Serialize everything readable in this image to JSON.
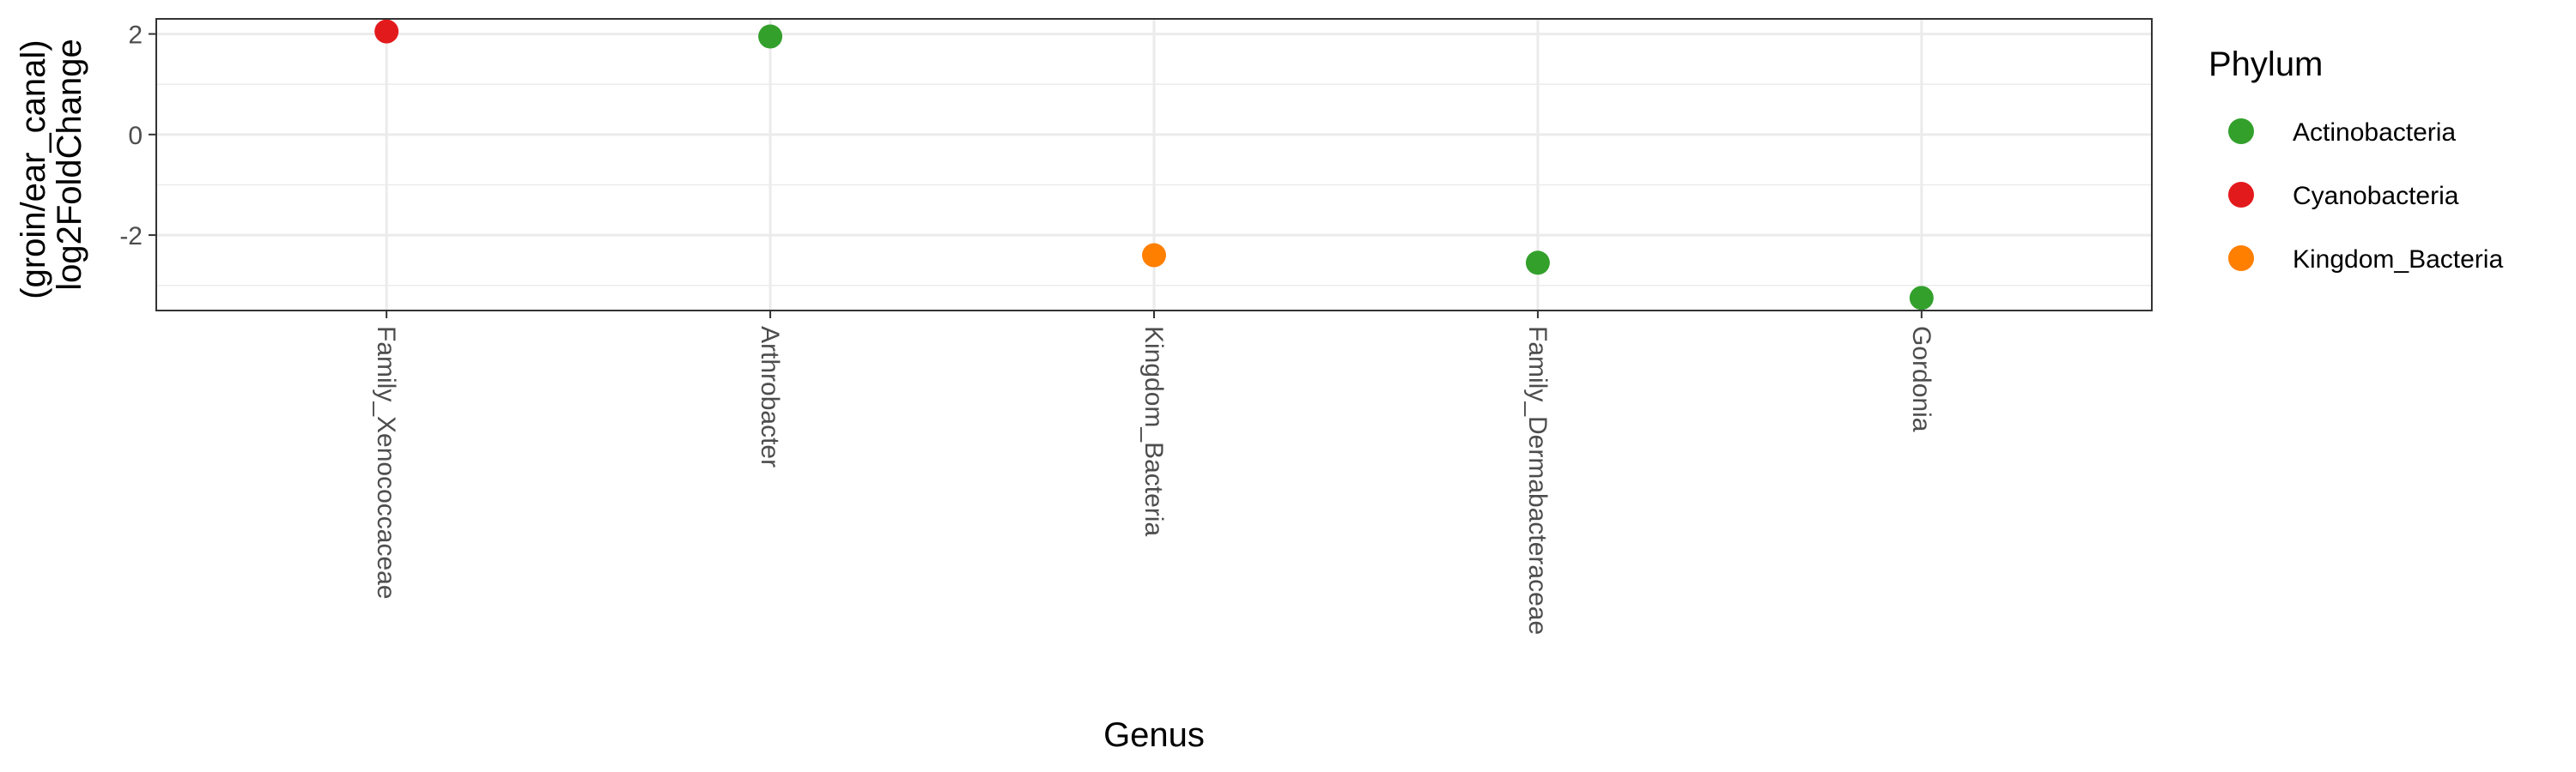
{
  "chart_data": {
    "type": "scatter",
    "xlabel": "Genus",
    "ylabel_lines": [
      "(groin/ear_canal)",
      "log2FoldChange"
    ],
    "categories": [
      "Family_Xenococcaceae",
      "Arthrobacter",
      "Kingdom_Bacteria",
      "Family_Dermabacteraceae",
      "Gordonia"
    ],
    "y": [
      2.05,
      1.95,
      -2.4,
      -2.55,
      -3.25
    ],
    "point_phylum": [
      "Cyanobacteria",
      "Actinobacteria",
      "Kingdom_Bacteria",
      "Actinobacteria",
      "Actinobacteria"
    ],
    "ylim": [
      -3.5,
      2.3
    ],
    "y_ticks": [
      2,
      0,
      -2
    ],
    "y_tick_labels": [
      "2",
      "0",
      "-2"
    ],
    "y_minor_ticks": [
      1,
      -1,
      -3
    ],
    "grid": true,
    "legend": {
      "title": "Phylum",
      "placement": "right",
      "entries": [
        {
          "name": "Actinobacteria",
          "color": "#33a02c"
        },
        {
          "name": "Cyanobacteria",
          "color": "#e31a1c"
        },
        {
          "name": "Kingdom_Bacteria",
          "color": "#ff7f00"
        }
      ]
    }
  }
}
